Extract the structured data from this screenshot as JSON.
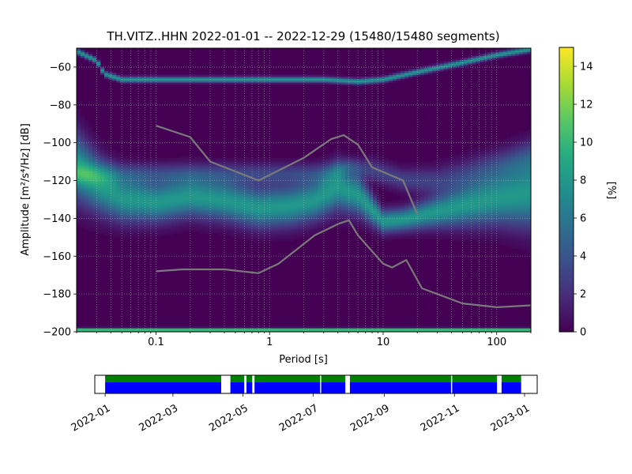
{
  "chart_data": [
    {
      "type": "heatmap",
      "title": "TH.VITZ..HHN   2022-01-01 -- 2022-12-29  (15480/15480 segments)",
      "xlabel": "Period [s]",
      "ylabel": "Amplitude [m²/s⁴/Hz] [dB]",
      "x_scale": "log",
      "xlim": [
        0.02,
        200
      ],
      "ylim": [
        -200,
        -50
      ],
      "x_ticks": [
        0.1,
        1,
        10,
        100
      ],
      "x_tick_labels": [
        "0.1",
        "1",
        "10",
        "100"
      ],
      "y_ticks": [
        -200,
        -180,
        -160,
        -140,
        -120,
        -100,
        -80,
        -60
      ],
      "y_tick_labels": [
        "−200",
        "−180",
        "−160",
        "−140",
        "−120",
        "−100",
        "−80",
        "−60"
      ],
      "grid": true,
      "colormap": "viridis",
      "colorbar": {
        "label": "[%]",
        "range": [
          0,
          15
        ],
        "ticks": [
          0,
          2,
          4,
          6,
          8,
          10,
          12,
          14
        ],
        "tick_labels": [
          "0",
          "2",
          "4",
          "6",
          "8",
          "10",
          "12",
          "14"
        ]
      },
      "density_bands": [
        {
          "name": "main-noise-band",
          "peak_percent": 8,
          "points": [
            [
              0.02,
              -113,
              12
            ],
            [
              0.03,
              -122,
              10
            ],
            [
              0.05,
              -130,
              8
            ],
            [
              0.1,
              -132,
              7
            ],
            [
              0.2,
              -129,
              7
            ],
            [
              0.4,
              -131,
              7
            ],
            [
              0.8,
              -135,
              7
            ],
            [
              1.5,
              -134,
              7
            ],
            [
              2.5,
              -131,
              7
            ],
            [
              4,
              -124,
              8
            ],
            [
              6,
              -128,
              7
            ],
            [
              10,
              -142,
              4
            ],
            [
              15,
              -141,
              4
            ],
            [
              25,
              -138,
              5
            ],
            [
              50,
              -134,
              7
            ],
            [
              100,
              -130,
              9
            ],
            [
              200,
              -127,
              12
            ]
          ]
        },
        {
          "name": "secondary-band",
          "peak_percent": 3,
          "points": [
            [
              3,
              -117,
              4
            ],
            [
              5,
              -113,
              3
            ],
            [
              8,
              -115,
              4
            ],
            [
              15,
              -120,
              4
            ],
            [
              30,
              -121,
              5
            ],
            [
              60,
              -117,
              6
            ],
            [
              120,
              -112,
              6
            ],
            [
              200,
              -108,
              6
            ]
          ]
        },
        {
          "name": "upper-line",
          "peak_percent": 8,
          "points": [
            [
              0.02,
              -52,
              1
            ],
            [
              0.03,
              -57,
              1
            ],
            [
              0.035,
              -64,
              1
            ],
            [
              0.05,
              -67,
              1
            ],
            [
              1,
              -67,
              1
            ],
            [
              3,
              -67,
              1
            ],
            [
              6,
              -68,
              1
            ],
            [
              10,
              -67,
              1
            ],
            [
              20,
              -63,
              1
            ],
            [
              50,
              -58,
              1
            ],
            [
              100,
              -54,
              1
            ],
            [
              200,
              -51,
              1
            ]
          ]
        },
        {
          "name": "floor-line",
          "peak_percent": 14,
          "points": [
            [
              0.02,
              -199.5,
              0.5
            ],
            [
              200,
              -199.5,
              0.5
            ]
          ]
        }
      ],
      "series": [
        {
          "values": [
            [
              0.1,
              -91
            ],
            [
              0.2,
              -97
            ],
            [
              0.3,
              -110
            ],
            [
              0.8,
              -120
            ],
            [
              2,
              -108
            ],
            [
              3.5,
              -98
            ],
            [
              4.5,
              -96
            ],
            [
              6,
              -101
            ],
            [
              8,
              -113
            ],
            [
              15,
              -120
            ],
            [
              20,
              -138
            ]
          ]
        },
        {
          "values": [
            [
              0.1,
              -168
            ],
            [
              0.17,
              -167
            ],
            [
              0.4,
              -167
            ],
            [
              0.8,
              -169
            ],
            [
              1.2,
              -164
            ],
            [
              2.5,
              -149
            ],
            [
              4,
              -143
            ],
            [
              5,
              -141
            ],
            [
              6,
              -149
            ],
            [
              10,
              -164
            ],
            [
              12,
              -166
            ],
            [
              16,
              -162
            ],
            [
              22,
              -177
            ],
            [
              50,
              -185
            ],
            [
              100,
              -187
            ],
            [
              200,
              -186
            ]
          ]
        }
      ]
    },
    {
      "type": "timeline",
      "x_tick_labels": [
        "2022-01",
        "2022-03",
        "2022-05",
        "2022-07",
        "2022-09",
        "2022-11",
        "2023-01"
      ],
      "x_tick_dates": [
        "2022-01-01",
        "2022-03-01",
        "2022-05-01",
        "2022-07-01",
        "2022-09-01",
        "2022-11-01",
        "2023-01-01"
      ],
      "xlim": [
        "2021-12-23",
        "2023-01-12"
      ],
      "colors": {
        "covered": "#008000",
        "used": "#0000ff"
      },
      "gaps": [
        [
          "2022-04-12",
          "2022-04-20"
        ],
        [
          "2022-05-02",
          "2022-05-04"
        ],
        [
          "2022-05-09",
          "2022-05-11"
        ],
        [
          "2022-07-07",
          "2022-07-08"
        ],
        [
          "2022-07-29",
          "2022-08-02"
        ],
        [
          "2022-10-29",
          "2022-10-30"
        ],
        [
          "2022-12-08",
          "2022-12-12"
        ]
      ],
      "coverage": [
        "2022-01-01",
        "2022-12-29"
      ]
    }
  ]
}
